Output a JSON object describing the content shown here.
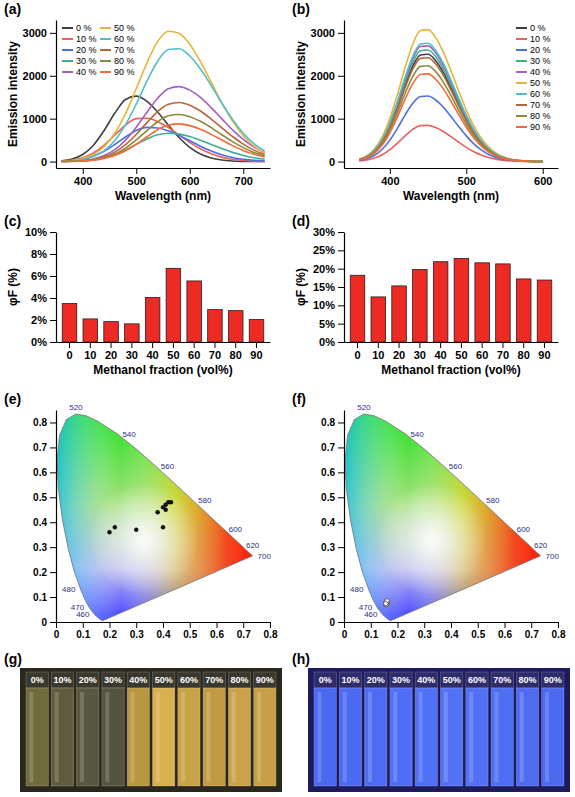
{
  "chart_data": [
    {
      "type": "line",
      "title": "(a)",
      "xlabel": "Wavelength (nm)",
      "ylabel": "Emission intensity",
      "xlim": [
        350,
        750
      ],
      "xticks": [
        400,
        500,
        600,
        700
      ],
      "ylim": [
        -150,
        3300
      ],
      "yticks": [
        0,
        1000,
        2000,
        3000
      ],
      "legend": "upper left",
      "x": [
        360,
        380,
        400,
        420,
        440,
        460,
        480,
        500,
        520,
        540,
        560,
        580,
        600,
        620,
        640,
        660,
        680,
        700,
        720,
        740
      ],
      "series": [
        {
          "name": "0 %",
          "color": "#404040",
          "values": [
            17,
            58,
            165,
            381,
            725,
            1131,
            1447,
            1525,
            1403,
            1155,
            851,
            561,
            331,
            175,
            83,
            35,
            13,
            4,
            1,
            0
          ]
        },
        {
          "name": "10 %",
          "color": "#e8615d",
          "values": [
            11,
            35,
            91,
            202,
            383,
            619,
            852,
            1000,
            1010,
            930,
            790,
            619,
            446,
            297,
            182,
            103,
            53,
            26,
            11,
            5
          ]
        },
        {
          "name": "20 %",
          "color": "#4a6fe3",
          "values": [
            9,
            25,
            60,
            129,
            242,
            398,
            572,
            722,
            797,
            784,
            717,
            611,
            485,
            359,
            247,
            158,
            94,
            53,
            27,
            13
          ]
        },
        {
          "name": "30 %",
          "color": "#3fae8f",
          "values": [
            3,
            7,
            19,
            43,
            89,
            165,
            271,
            400,
            528,
            624,
            660,
            640,
            582,
            498,
            400,
            302,
            214,
            143,
            89,
            53
          ]
        },
        {
          "name": "40 %",
          "color": "#a65dc4",
          "values": [
            3,
            9,
            25,
            62,
            139,
            278,
            501,
            801,
            1150,
            1477,
            1696,
            1747,
            1666,
            1495,
            1258,
            996,
            740,
            516,
            338,
            208
          ]
        },
        {
          "name": "50 %",
          "color": "#e9b33c",
          "values": [
            9,
            26,
            70,
            165,
            348,
            660,
            1120,
            1696,
            2302,
            2797,
            3039,
            2990,
            2736,
            2330,
            1850,
            1366,
            942,
            604,
            360,
            200
          ]
        },
        {
          "name": "60 %",
          "color": "#4fc0c8",
          "values": [
            6,
            18,
            48,
            116,
            253,
            493,
            860,
            1341,
            1874,
            2339,
            2613,
            2629,
            2461,
            2157,
            1771,
            1362,
            981,
            661,
            417,
            246
          ]
        },
        {
          "name": "70 %",
          "color": "#b5653a",
          "values": [
            2,
            7,
            20,
            49,
            110,
            219,
            395,
            632,
            907,
            1165,
            1337,
            1377,
            1314,
            1179,
            992,
            785,
            584,
            407,
            266,
            164
          ]
        },
        {
          "name": "80 %",
          "color": "#8a8a3a",
          "values": [
            2,
            6,
            16,
            39,
            88,
            175,
            315,
            504,
            723,
            928,
            1066,
            1098,
            1047,
            939,
            791,
            626,
            465,
            325,
            212,
            131
          ]
        },
        {
          "name": "90 %",
          "color": "#f26a3a",
          "values": [
            1,
            4,
            12,
            31,
            70,
            140,
            252,
            403,
            578,
            743,
            853,
            878,
            838,
            752,
            633,
            501,
            372,
            260,
            170,
            105
          ]
        }
      ]
    },
    {
      "type": "line",
      "title": "(b)",
      "xlabel": "Wavelength (nm)",
      "ylabel": "Emission intensity",
      "xlim": [
        340,
        620
      ],
      "xticks": [
        400,
        500,
        600
      ],
      "ylim": [
        -150,
        3300
      ],
      "yticks": [
        0,
        1000,
        2000,
        3000
      ],
      "legend": "upper right",
      "x": [
        360,
        370,
        380,
        390,
        400,
        410,
        420,
        430,
        440,
        450,
        460,
        470,
        480,
        490,
        500,
        510,
        520,
        530,
        540,
        550,
        560,
        570,
        580,
        590,
        600
      ],
      "series": [
        {
          "name": "0 %",
          "color": "#404040",
          "values": [
            45,
            111,
            241,
            469,
            818,
            1275,
            1782,
            2224,
            2485,
            2500,
            2349,
            2074,
            1719,
            1338,
            980,
            673,
            433,
            264,
            150,
            80,
            40,
            19,
            9,
            4,
            1
          ]
        },
        {
          "name": "10 %",
          "color": "#e8615d",
          "values": [
            15,
            37,
            81,
            158,
            276,
            430,
            601,
            750,
            838,
            843,
            792,
            700,
            580,
            451,
            331,
            227,
            146,
            89,
            51,
            27,
            14,
            6,
            3,
            1,
            0
          ]
        },
        {
          "name": "20 %",
          "color": "#4a6fe3",
          "values": [
            28,
            68,
            147,
            286,
            500,
            779,
            1089,
            1359,
            1518,
            1528,
            1435,
            1267,
            1050,
            818,
            599,
            411,
            265,
            161,
            92,
            49,
            25,
            12,
            5,
            2,
            1
          ]
        },
        {
          "name": "30 %",
          "color": "#3fae8f",
          "values": [
            47,
            115,
            250,
            487,
            851,
            1326,
            1852,
            2312,
            2583,
            2599,
            2442,
            2156,
            1787,
            1391,
            1019,
            700,
            451,
            274,
            156,
            84,
            42,
            20,
            9,
            4,
            1
          ]
        },
        {
          "name": "40 %",
          "color": "#a65dc4",
          "values": [
            49,
            119,
            260,
            506,
            883,
            1376,
            1923,
            2400,
            2682,
            2698,
            2535,
            2239,
            1855,
            1444,
            1058,
            726,
            468,
            285,
            162,
            87,
            44,
            21,
            9,
            4,
            1
          ]
        },
        {
          "name": "50 %",
          "color": "#e9b33c",
          "values": [
            56,
            136,
            296,
            577,
            1007,
            1569,
            2192,
            2736,
            3057,
            3075,
            2889,
            2551,
            2114,
            1646,
            1206,
            828,
            533,
            324,
            185,
            99,
            50,
            24,
            11,
            4,
            2
          ]
        },
        {
          "name": "60 %",
          "color": "#4fc0c8",
          "values": [
            50,
            122,
            266,
            517,
            903,
            1407,
            1965,
            2453,
            2741,
            2758,
            2591,
            2288,
            1896,
            1476,
            1081,
            742,
            478,
            291,
            166,
            89,
            44,
            21,
            9,
            4,
            1
          ]
        },
        {
          "name": "70 %",
          "color": "#b5653a",
          "values": [
            44,
            107,
            233,
            454,
            792,
            1235,
            1725,
            2153,
            2406,
            2420,
            2274,
            2008,
            1664,
            1296,
            949,
            651,
            420,
            255,
            145,
            78,
            39,
            19,
            8,
            3,
            1
          ]
        },
        {
          "name": "80 %",
          "color": "#8a8a3a",
          "values": [
            41,
            99,
            215,
            419,
            731,
            1139,
            1591,
            1986,
            2219,
            2232,
            2097,
            1852,
            1535,
            1195,
            875,
            601,
            387,
            235,
            134,
            72,
            36,
            17,
            8,
            3,
            1
          ]
        },
        {
          "name": "90 %",
          "color": "#f26a3a",
          "values": [
            37,
            90,
            197,
            383,
            669,
            1042,
            1456,
            1818,
            2031,
            2044,
            1920,
            1695,
            1405,
            1094,
            801,
            550,
            354,
            215,
            123,
            66,
            33,
            16,
            7,
            3,
            1
          ]
        }
      ]
    },
    {
      "type": "bar",
      "title": "(c)",
      "xlabel": "Methanol fraction (vol%)",
      "ylabel": "φF (%)",
      "categories": [
        "0",
        "10",
        "20",
        "30",
        "40",
        "50",
        "60",
        "70",
        "80",
        "90"
      ],
      "values": [
        3.5,
        2.1,
        1.85,
        1.65,
        4.05,
        6.7,
        5.55,
        2.95,
        2.85,
        2.05
      ],
      "color": "#ee2a24",
      "ylim": [
        0,
        10
      ],
      "yticks": [
        {
          "value": 0,
          "label": "0%"
        },
        {
          "value": 2,
          "label": "2%"
        },
        {
          "value": 4,
          "label": "4%"
        },
        {
          "value": 6,
          "label": "6%"
        },
        {
          "value": 8,
          "label": "8%"
        },
        {
          "value": 10,
          "label": "10%"
        }
      ]
    },
    {
      "type": "bar",
      "title": "(d)",
      "xlabel": "Methanol fraction (vol%)",
      "ylabel": "φF (%)",
      "categories": [
        "0",
        "10",
        "20",
        "30",
        "40",
        "50",
        "60",
        "70",
        "80",
        "90"
      ],
      "values": [
        18.2,
        12.3,
        15.3,
        19.8,
        21.9,
        22.8,
        21.6,
        21.3,
        17.2,
        16.9
      ],
      "color": "#ee2a24",
      "ylim": [
        0,
        30
      ],
      "yticks": [
        {
          "value": 0,
          "label": "0%"
        },
        {
          "value": 5,
          "label": "5%"
        },
        {
          "value": 10,
          "label": "10%"
        },
        {
          "value": 15,
          "label": "15%"
        },
        {
          "value": 20,
          "label": "20%"
        },
        {
          "value": 25,
          "label": "25%"
        },
        {
          "value": 30,
          "label": "30%"
        }
      ]
    },
    {
      "type": "scatter",
      "title": "(e)",
      "marker": "circle",
      "color": "#111111",
      "xlim": [
        0,
        0.8
      ],
      "xticks": [
        0,
        0.1,
        0.2,
        0.3,
        0.4,
        0.5,
        0.6,
        0.7,
        0.8
      ],
      "ylim": [
        0,
        0.85
      ],
      "yticks": [
        0,
        0.1,
        0.2,
        0.3,
        0.4,
        0.5,
        0.6,
        0.7,
        0.8
      ],
      "x": [
        0.2,
        0.22,
        0.3,
        0.38,
        0.4,
        0.41,
        0.41,
        0.42,
        0.43,
        0.4
      ],
      "values": [
        0.36,
        0.38,
        0.37,
        0.44,
        0.46,
        0.47,
        0.45,
        0.48,
        0.48,
        0.38
      ],
      "locus": {
        "x": [
          0.1741,
          0.1644,
          0.1566,
          0.144,
          0.1241,
          0.1096,
          0.0913,
          0.0687,
          0.0454,
          0.0235,
          0.0082,
          0.0039,
          0.0139,
          0.0389,
          0.0743,
          0.1142,
          0.1547,
          0.2296,
          0.3016,
          0.3731,
          0.4441,
          0.5125,
          0.5752,
          0.627,
          0.6658,
          0.6915,
          0.719,
          0.7347
        ],
        "y": [
          0.005,
          0.0109,
          0.0177,
          0.0297,
          0.0578,
          0.0868,
          0.1327,
          0.2007,
          0.295,
          0.4127,
          0.5384,
          0.6548,
          0.7502,
          0.812,
          0.8338,
          0.8262,
          0.8059,
          0.7543,
          0.6923,
          0.6245,
          0.5547,
          0.4866,
          0.4242,
          0.3725,
          0.334,
          0.3083,
          0.2809,
          0.2653
        ]
      },
      "annotations": [
        {
          "text": "520",
          "x": 0.0743,
          "y": 0.8338
        },
        {
          "text": "540",
          "x": 0.2296,
          "y": 0.7543
        },
        {
          "text": "560",
          "x": 0.3731,
          "y": 0.6245
        },
        {
          "text": "580",
          "x": 0.5125,
          "y": 0.4866
        },
        {
          "text": "600",
          "x": 0.627,
          "y": 0.3725
        },
        {
          "text": "620",
          "x": 0.6915,
          "y": 0.3083
        },
        {
          "text": "700",
          "x": 0.7347,
          "y": 0.2653
        },
        {
          "text": "480",
          "x": 0.0913,
          "y": 0.1327
        },
        {
          "text": "470",
          "x": 0.1241,
          "y": 0.0578
        },
        {
          "text": "460",
          "x": 0.144,
          "y": 0.0297
        }
      ]
    },
    {
      "type": "scatter",
      "title": "(f)",
      "marker": "open-circle",
      "color": "#555555",
      "xlim": [
        0,
        0.8
      ],
      "xticks": [
        0,
        0.1,
        0.2,
        0.3,
        0.4,
        0.5,
        0.6,
        0.7,
        0.8
      ],
      "ylim": [
        0,
        0.85
      ],
      "yticks": [
        0,
        0.1,
        0.2,
        0.3,
        0.4,
        0.5,
        0.6,
        0.7,
        0.8
      ],
      "x": [
        0.155,
        0.16,
        0.158,
        0.162,
        0.157,
        0.16,
        0.163,
        0.159,
        0.161,
        0.156
      ],
      "values": [
        0.07,
        0.075,
        0.08,
        0.072,
        0.078,
        0.082,
        0.076,
        0.07,
        0.085,
        0.074
      ],
      "locus": {
        "x": [
          0.1741,
          0.1644,
          0.1566,
          0.144,
          0.1241,
          0.1096,
          0.0913,
          0.0687,
          0.0454,
          0.0235,
          0.0082,
          0.0039,
          0.0139,
          0.0389,
          0.0743,
          0.1142,
          0.1547,
          0.2296,
          0.3016,
          0.3731,
          0.4441,
          0.5125,
          0.5752,
          0.627,
          0.6658,
          0.6915,
          0.719,
          0.7347
        ],
        "y": [
          0.005,
          0.0109,
          0.0177,
          0.0297,
          0.0578,
          0.0868,
          0.1327,
          0.2007,
          0.295,
          0.4127,
          0.5384,
          0.6548,
          0.7502,
          0.812,
          0.8338,
          0.8262,
          0.8059,
          0.7543,
          0.6923,
          0.6245,
          0.5547,
          0.4866,
          0.4242,
          0.3725,
          0.334,
          0.3083,
          0.2809,
          0.2653
        ]
      },
      "annotations": [
        {
          "text": "520",
          "x": 0.0743,
          "y": 0.8338
        },
        {
          "text": "540",
          "x": 0.2296,
          "y": 0.7543
        },
        {
          "text": "560",
          "x": 0.3731,
          "y": 0.6245
        },
        {
          "text": "580",
          "x": 0.5125,
          "y": 0.4866
        },
        {
          "text": "600",
          "x": 0.627,
          "y": 0.3725
        },
        {
          "text": "620",
          "x": 0.6915,
          "y": 0.3083
        },
        {
          "text": "700",
          "x": 0.7347,
          "y": 0.2653
        },
        {
          "text": "480",
          "x": 0.0913,
          "y": 0.1327
        },
        {
          "text": "470",
          "x": 0.1241,
          "y": 0.0578
        },
        {
          "text": "460",
          "x": 0.144,
          "y": 0.0297
        }
      ]
    }
  ],
  "photos": [
    {
      "title": "(g)",
      "color": "#2a281c",
      "labels": [
        "0%",
        "10%",
        "20%",
        "30%",
        "40%",
        "50%",
        "60%",
        "70%",
        "80%",
        "90%"
      ],
      "colors": [
        "#6f6b3c",
        "#5f5c3e",
        "#58573f",
        "#545340",
        "#b8973e",
        "#d9b04e",
        "#c9a246",
        "#c29a44",
        "#caa24a",
        "#c79f47"
      ]
    },
    {
      "title": "(h)",
      "color": "#1d1b5e",
      "labels": [
        "0%",
        "10%",
        "20%",
        "30%",
        "40%",
        "50%",
        "60%",
        "70%",
        "80%",
        "90%"
      ],
      "colors": [
        "#4a68f0",
        "#4c6af2",
        "#4d6cf3",
        "#4f6ef5",
        "#5070f6",
        "#5272f7",
        "#5070f5",
        "#4e6ef4",
        "#4d6cf2",
        "#4b6af0"
      ]
    }
  ]
}
